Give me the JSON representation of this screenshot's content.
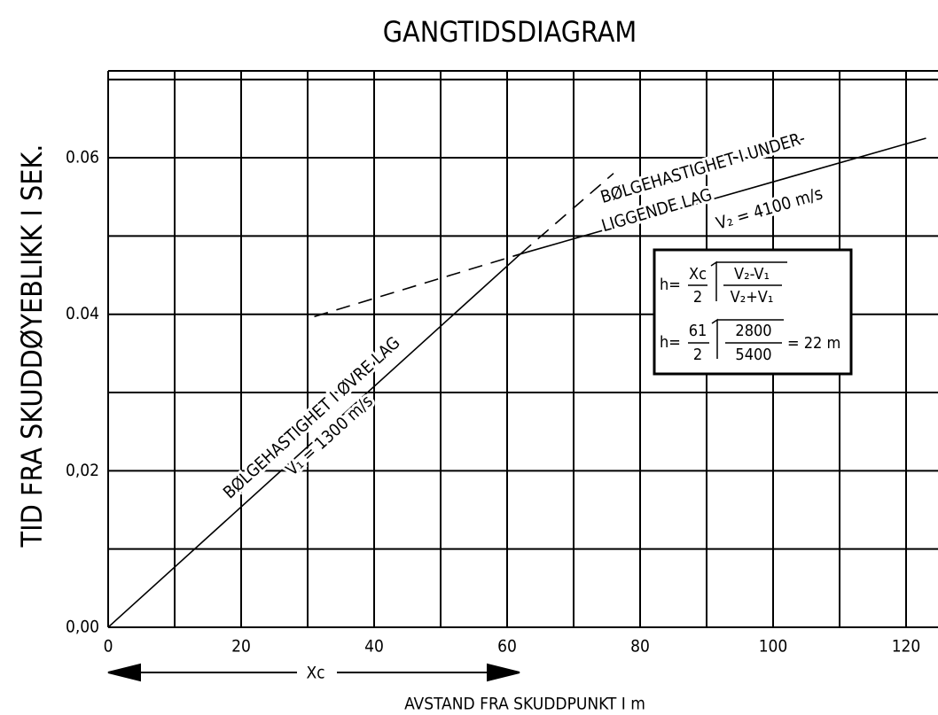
{
  "chart_data": {
    "type": "line",
    "title": "GANGTIDSDIAGRAM",
    "ylabel": "TID FRA SKUDDØYEBLIKK I SEK.",
    "xlabel": "AVSTAND FRA SKUDDPUNKT I m",
    "xlim": [
      0,
      124.8
    ],
    "ylim": [
      0,
      0.0711
    ],
    "xticks": [
      0,
      20,
      40,
      60,
      80,
      100,
      120
    ],
    "yticks": [
      {
        "value": 0,
        "label": "0,00"
      },
      {
        "value": 0.02,
        "label": "0,02"
      },
      0.04,
      0.06
    ],
    "xgrid_minor": [
      10,
      30,
      50,
      70,
      90,
      110
    ],
    "ygrid_minor": [
      0.01,
      0.03,
      0.05,
      0.07
    ],
    "grid": true,
    "series": [
      {
        "color": "#000000",
        "style": "solid",
        "x": [
          0,
          62
        ],
        "values": [
          0,
          0.0477
        ]
      },
      {
        "color": "#000000",
        "style": "dashed",
        "x": [
          62,
          76
        ],
        "values": [
          0.0477,
          0.058
        ]
      },
      {
        "color": "#000000",
        "style": "solid",
        "x": [
          62,
          123
        ],
        "values": [
          0.0477,
          0.0625
        ]
      },
      {
        "color": "#000000",
        "style": "dashed",
        "x": [
          31,
          62
        ],
        "values": [
          0.0397,
          0.0477
        ]
      }
    ],
    "annotations": {
      "lower_layer_1": "BØLGEHASTIGHET I ØVRE LAG",
      "lower_layer_2": "V₁ = 1300 m/s",
      "upper_layer_1": "BØLGEHASTIGHET I UNDER-",
      "upper_layer_2": "LIGGENDE LAG",
      "upper_layer_3": "V₂ = 4100 m/s",
      "xc": "Xc"
    },
    "formula": {
      "h1": "h=",
      "num1": "Xc",
      "den1": "2",
      "rnum1": "V₂-V₁",
      "rden1": "V₂+V₁",
      "h2": "h=",
      "num2": "61",
      "den2": "2",
      "rnum2": "2800",
      "rden2": "5400",
      "result": "= 22 m"
    }
  }
}
